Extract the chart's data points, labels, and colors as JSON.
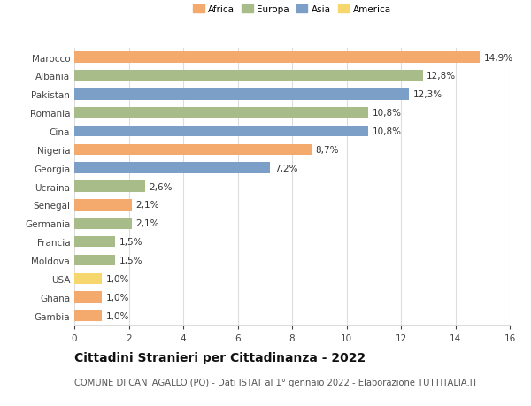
{
  "countries": [
    "Marocco",
    "Albania",
    "Pakistan",
    "Romania",
    "Cina",
    "Nigeria",
    "Georgia",
    "Ucraina",
    "Senegal",
    "Germania",
    "Francia",
    "Moldova",
    "USA",
    "Ghana",
    "Gambia"
  ],
  "values": [
    14.9,
    12.8,
    12.3,
    10.8,
    10.8,
    8.7,
    7.2,
    2.6,
    2.1,
    2.1,
    1.5,
    1.5,
    1.0,
    1.0,
    1.0
  ],
  "continents": [
    "Africa",
    "Europa",
    "Asia",
    "Europa",
    "Asia",
    "Africa",
    "Asia",
    "Europa",
    "Africa",
    "Europa",
    "Europa",
    "Europa",
    "America",
    "Africa",
    "Africa"
  ],
  "continent_colors": {
    "Africa": "#F4A96D",
    "Europa": "#A8BC8A",
    "Asia": "#7B9FC7",
    "America": "#F5D76E"
  },
  "legend_order": [
    "Africa",
    "Europa",
    "Asia",
    "America"
  ],
  "title": "Cittadini Stranieri per Cittadinanza - 2022",
  "subtitle": "COMUNE DI CANTAGALLO (PO) - Dati ISTAT al 1° gennaio 2022 - Elaborazione TUTTITALIA.IT",
  "xlim": [
    0,
    16
  ],
  "xticks": [
    0,
    2,
    4,
    6,
    8,
    10,
    12,
    14,
    16
  ],
  "background_color": "#ffffff",
  "grid_color": "#dddddd",
  "bar_height": 0.6,
  "label_fontsize": 7.5,
  "tick_fontsize": 7.5,
  "title_fontsize": 10,
  "subtitle_fontsize": 7.2
}
